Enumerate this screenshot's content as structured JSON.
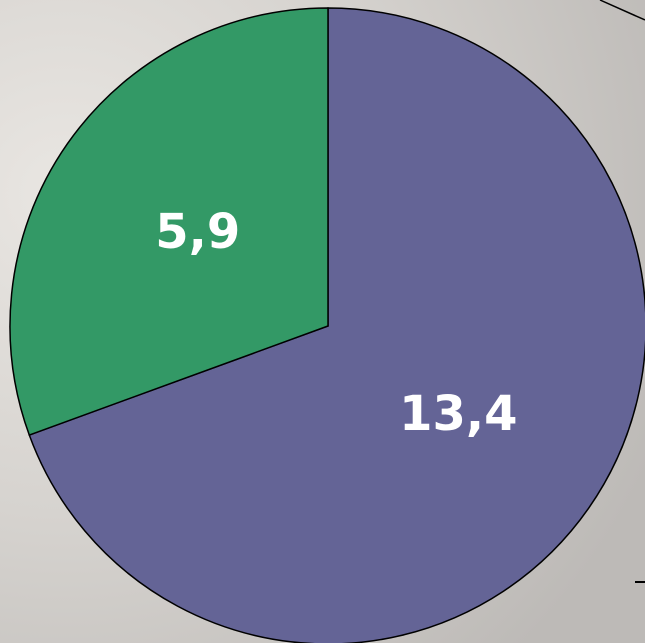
{
  "chart_data": {
    "type": "pie",
    "series": [
      {
        "name": null,
        "values": [
          13.4,
          5.9
        ],
        "value_labels": [
          "13,4",
          "5,9"
        ],
        "colors": [
          "#646496",
          "#339966"
        ]
      }
    ],
    "start_angle": 90,
    "direction": "clockwise"
  }
}
